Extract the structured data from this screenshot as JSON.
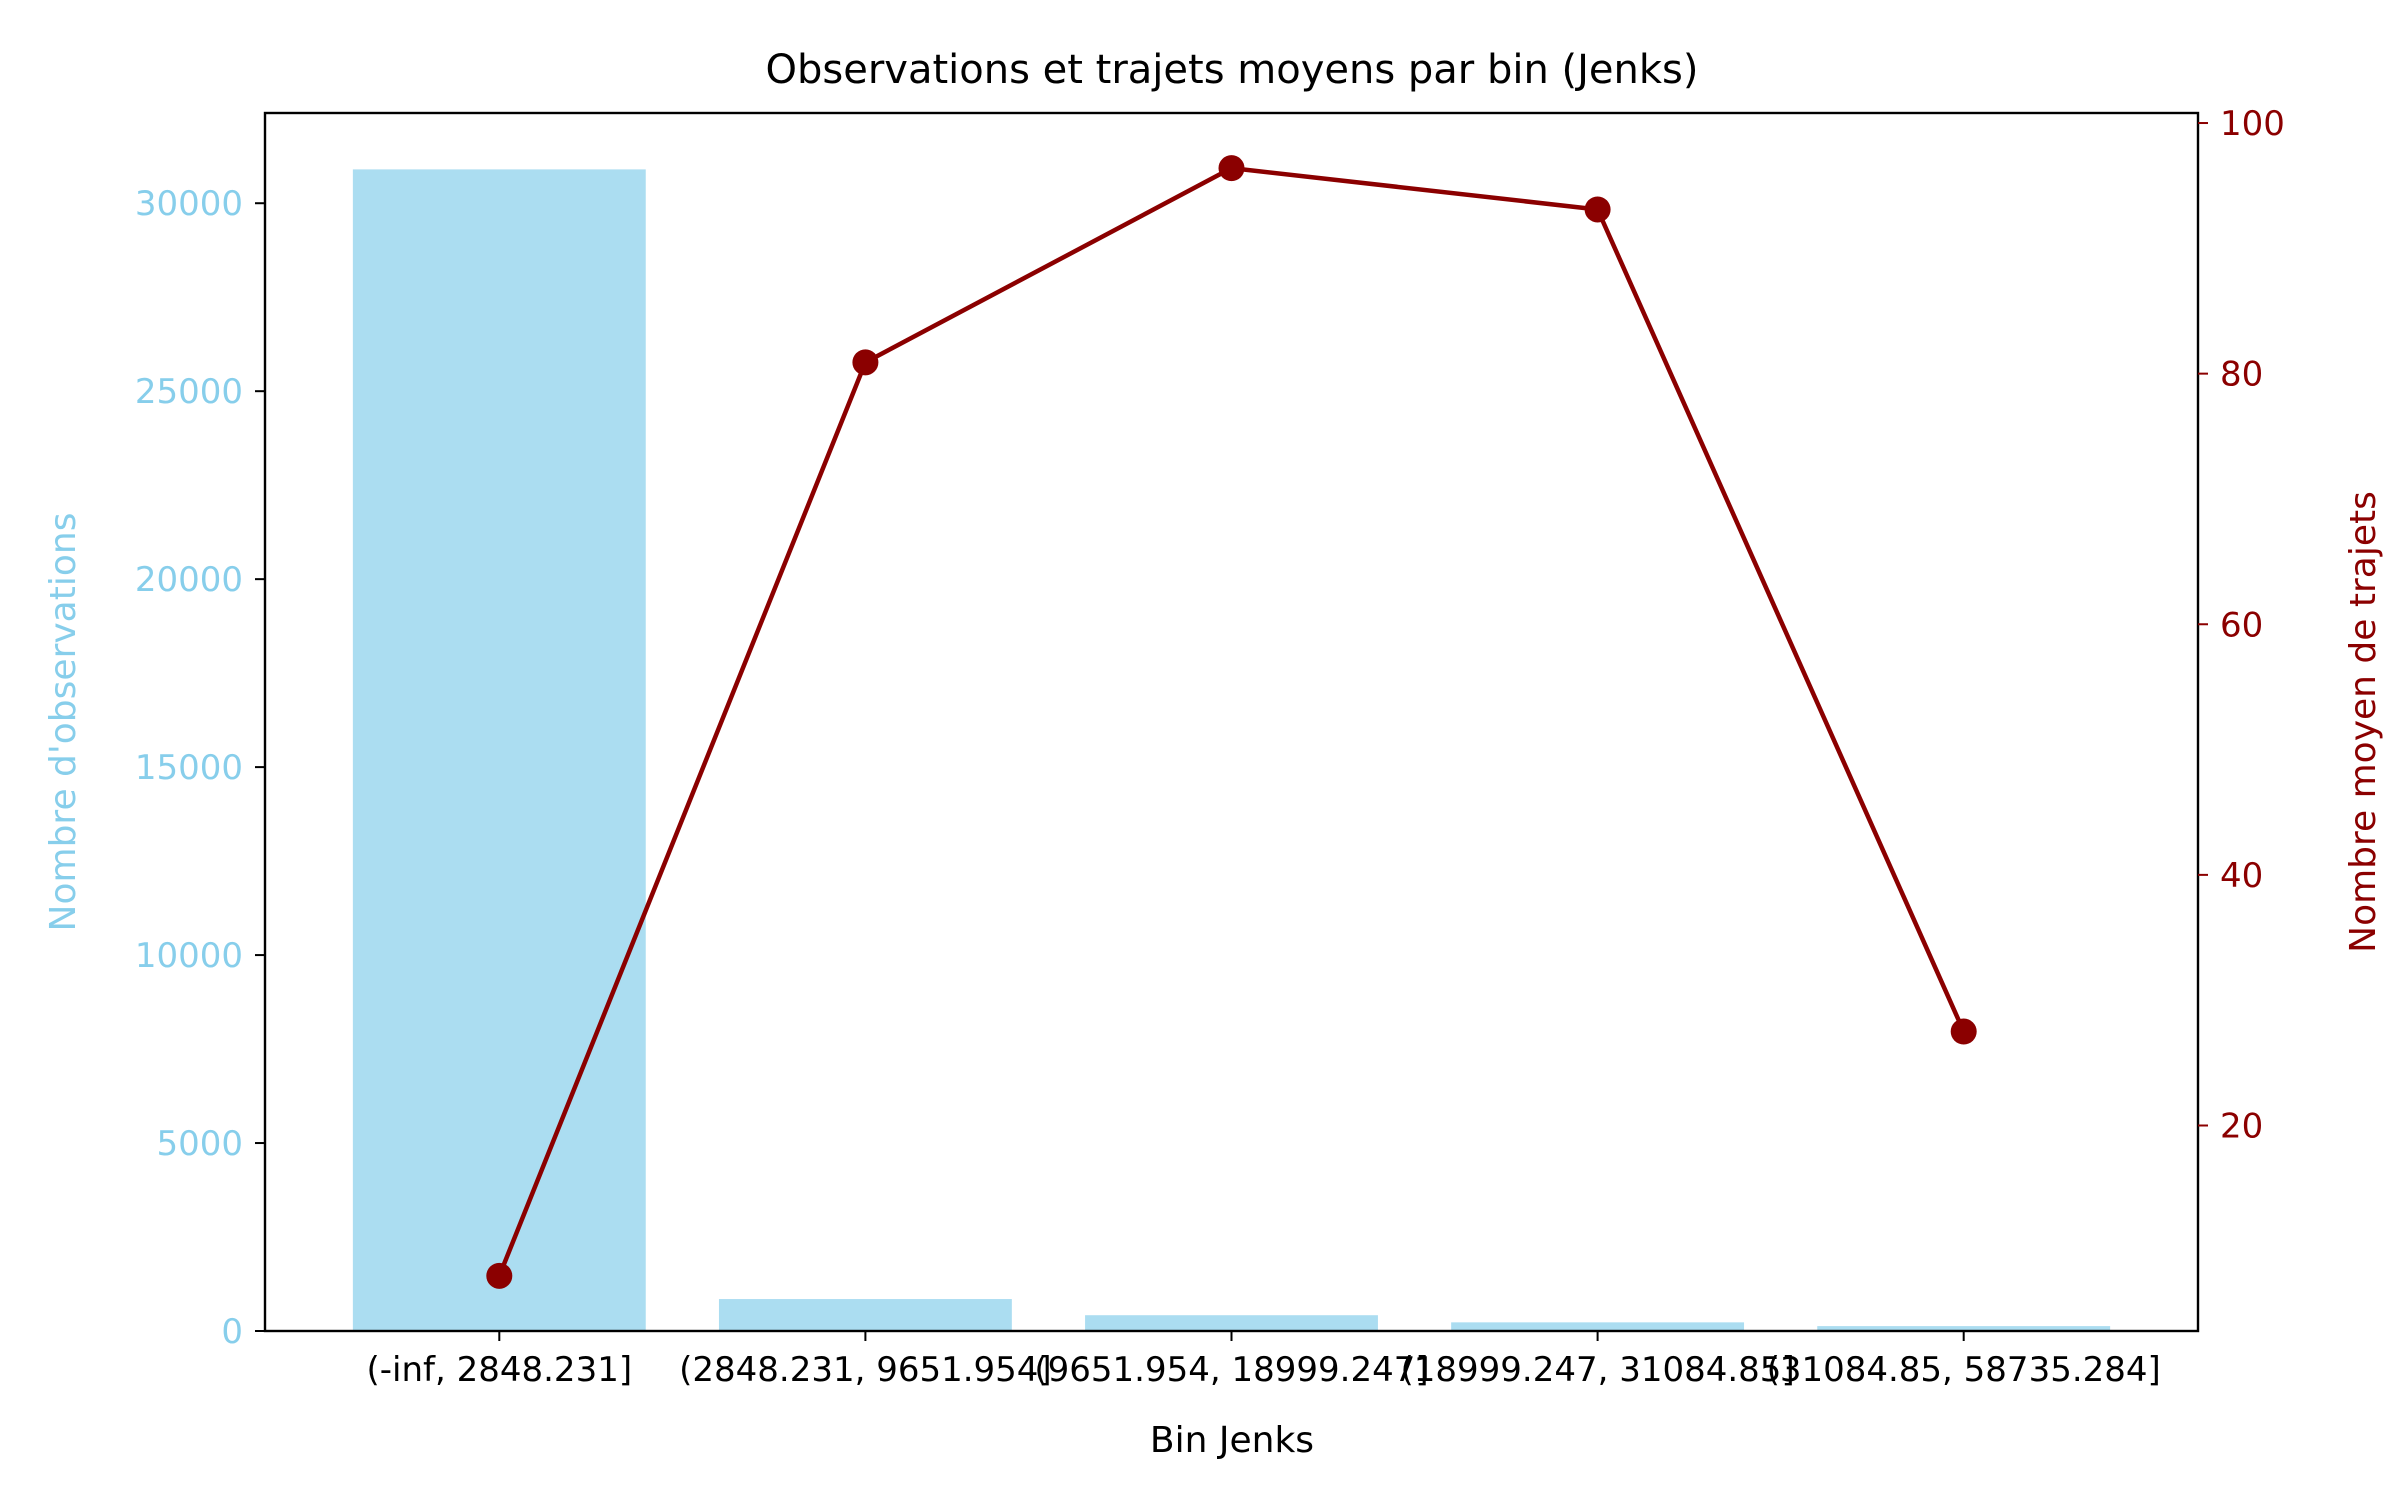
{
  "chart_data": {
    "type": "bar",
    "title": "Observations et trajets moyens par bin (Jenks)",
    "xlabel": "Bin Jenks",
    "categories": [
      "(-inf, 2848.231]",
      "(2848.231, 9651.954]",
      "(9651.954, 18999.247]",
      "(18999.247, 31084.85]",
      "(31084.85, 58735.284]"
    ],
    "series": [
      {
        "name": "Nombre d'observations",
        "type": "bar",
        "axis": "left",
        "color": "#87ceeb",
        "values": [
          30900,
          850,
          420,
          230,
          130
        ]
      },
      {
        "name": "Nombre moyen de trajets",
        "type": "line",
        "axis": "right",
        "color": "#8b0000",
        "marker": "circle",
        "values": [
          8.0,
          80.9,
          96.4,
          93.1,
          27.5
        ]
      }
    ],
    "y_left": {
      "label": "Nombre d'observations",
      "color": "#87ceeb",
      "ylim": [
        0,
        32400
      ],
      "ticks": [
        0,
        5000,
        10000,
        15000,
        20000,
        25000,
        30000
      ]
    },
    "y_right": {
      "label": "Nombre moyen de trajets",
      "color": "#8b0000",
      "ylim": [
        3.6,
        100.8
      ],
      "ticks": [
        20,
        40,
        60,
        80,
        100
      ]
    },
    "grid": false,
    "legend": "none"
  }
}
